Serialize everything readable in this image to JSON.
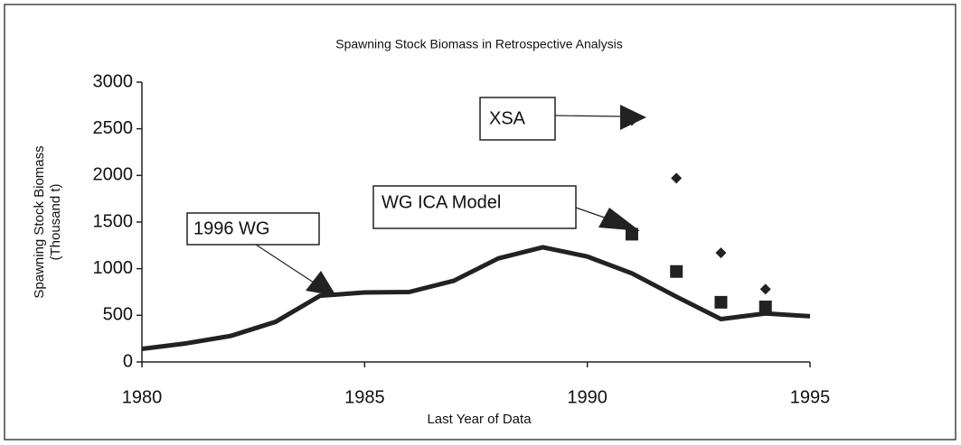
{
  "chart_data": {
    "type": "line",
    "title": "Spawning Stock Biomass  in Retrospective Analysis",
    "xlabel": "Last Year of Data",
    "ylabel": [
      "Spawning Stock Biomass",
      "(Thousand t)"
    ],
    "xlim": [
      1980,
      1995
    ],
    "xticks": [
      1980,
      1985,
      1990,
      1995
    ],
    "ylim": [
      0,
      3000
    ],
    "yticks": [
      0,
      500,
      1000,
      1500,
      2000,
      2500,
      3000
    ],
    "grid": false,
    "series": [
      {
        "name": "1996 WG",
        "marker": "line",
        "color": "#222222",
        "x": [
          1980,
          1981,
          1982,
          1983,
          1984,
          1985,
          1986,
          1987,
          1988,
          1989,
          1990,
          1991,
          1992,
          1993,
          1994,
          1995
        ],
        "values": [
          140,
          200,
          280,
          430,
          710,
          745,
          750,
          870,
          1110,
          1230,
          1130,
          950,
          700,
          460,
          520,
          490
        ]
      },
      {
        "name": "XSA",
        "marker": "diamond",
        "color": "#222222",
        "x": [
          1991,
          1992,
          1993,
          1994
        ],
        "values": [
          2590,
          1970,
          1170,
          780
        ]
      },
      {
        "name": "WG ICA Model",
        "marker": "square",
        "color": "#222222",
        "x": [
          1991,
          1992,
          1993,
          1994
        ],
        "values": [
          1370,
          970,
          640,
          590
        ]
      }
    ]
  }
}
